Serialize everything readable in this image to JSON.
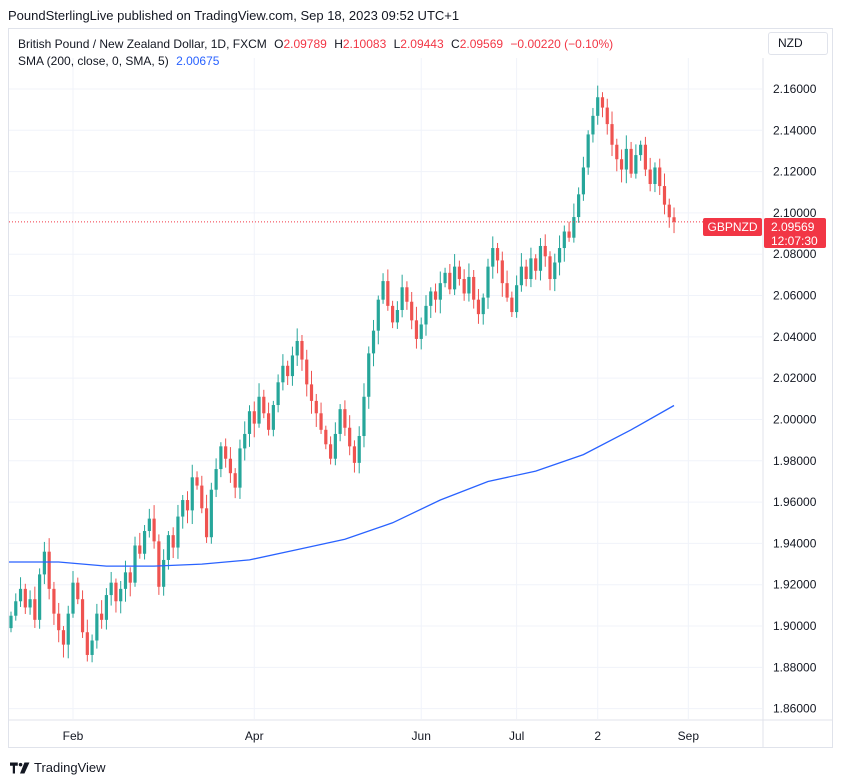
{
  "header": {
    "published_line": "PoundSterlingLive published on TradingView.com, Sep 18, 2023 09:52 UTC+1"
  },
  "legend": {
    "instrument": "British Pound / New Zealand Dollar, 1D, FXCM",
    "o_label": "O",
    "o_value": "2.09789",
    "h_label": "H",
    "h_value": "2.10083",
    "l_label": "L",
    "l_value": "2.09443",
    "c_label": "C",
    "c_value": "2.09569",
    "change": "−0.00220 (−0.10%)",
    "sma_label": "SMA (200, close, 0, SMA, 5)",
    "sma_value": "2.00675"
  },
  "currency_button": "NZD",
  "price_tag": {
    "symbol": "GBPNZD",
    "price": "2.09569",
    "countdown": "12:07:30"
  },
  "footer": {
    "brand": "TradingView"
  },
  "colors": {
    "up": "#26a69a",
    "down": "#ef5350",
    "sma": "#2962ff",
    "price_line": "#f23645",
    "grid": "#f0f3fa"
  },
  "chart_data": {
    "type": "candlestick",
    "title": "British Pound / New Zealand Dollar, 1D, FXCM",
    "ylim": [
      1.855,
      2.175
    ],
    "y_ticks": [
      "2.16000",
      "2.14000",
      "2.12000",
      "2.10000",
      "2.08000",
      "2.06000",
      "2.04000",
      "2.02000",
      "2.00000",
      "1.98000",
      "1.96000",
      "1.94000",
      "1.92000",
      "1.90000",
      "1.88000",
      "1.86000"
    ],
    "x_ticks": [
      {
        "label": "Feb",
        "index": 13
      },
      {
        "label": "Apr",
        "index": 51
      },
      {
        "label": "Jun",
        "index": 86
      },
      {
        "label": "Jul",
        "index": 106
      },
      {
        "label": "2",
        "index": 123
      },
      {
        "label": "Sep",
        "index": 142
      }
    ],
    "last_close": 2.09569,
    "closes": [
      1.905,
      1.912,
      1.918,
      1.909,
      1.913,
      1.903,
      1.925,
      1.936,
      1.918,
      1.906,
      1.898,
      1.891,
      1.906,
      1.921,
      1.913,
      1.897,
      1.886,
      1.893,
      1.906,
      1.903,
      1.915,
      1.921,
      1.912,
      1.918,
      1.926,
      1.921,
      1.939,
      1.935,
      1.946,
      1.952,
      1.941,
      1.919,
      1.932,
      1.944,
      1.938,
      1.953,
      1.961,
      1.956,
      1.972,
      1.968,
      1.957,
      1.943,
      1.966,
      1.976,
      1.987,
      1.981,
      1.974,
      1.967,
      1.986,
      1.993,
      2.004,
      1.998,
      2.011,
      2.003,
      1.995,
      2.007,
      2.018,
      2.026,
      2.021,
      2.031,
      2.038,
      2.029,
      2.017,
      2.009,
      2.003,
      1.995,
      1.988,
      1.981,
      1.993,
      2.005,
      1.996,
      1.987,
      1.979,
      1.992,
      2.011,
      2.032,
      2.043,
      2.058,
      2.067,
      2.055,
      2.047,
      2.053,
      2.064,
      2.057,
      2.048,
      2.039,
      2.046,
      2.055,
      2.062,
      2.058,
      2.066,
      2.071,
      2.063,
      2.074,
      2.068,
      2.061,
      2.069,
      2.058,
      2.051,
      2.059,
      2.074,
      2.083,
      2.077,
      2.066,
      2.059,
      2.052,
      2.065,
      2.074,
      2.068,
      2.078,
      2.072,
      2.084,
      2.079,
      2.068,
      2.076,
      2.083,
      2.091,
      2.088,
      2.098,
      2.109,
      2.122,
      2.138,
      2.147,
      2.156,
      2.151,
      2.143,
      2.133,
      2.126,
      2.121,
      2.131,
      2.119,
      2.128,
      2.133,
      2.121,
      2.114,
      2.122,
      2.113,
      2.104,
      2.0979,
      2.09569
    ],
    "sma_series": {
      "name": "SMA (200, close, 0, SMA, 5)",
      "x_index": [
        0,
        10,
        20,
        30,
        40,
        50,
        60,
        70,
        80,
        90,
        100,
        110,
        120,
        130,
        139
      ],
      "values": [
        1.931,
        1.931,
        1.929,
        1.929,
        1.93,
        1.932,
        1.937,
        1.942,
        1.95,
        1.961,
        1.97,
        1.975,
        1.983,
        1.995,
        2.00675
      ]
    }
  }
}
